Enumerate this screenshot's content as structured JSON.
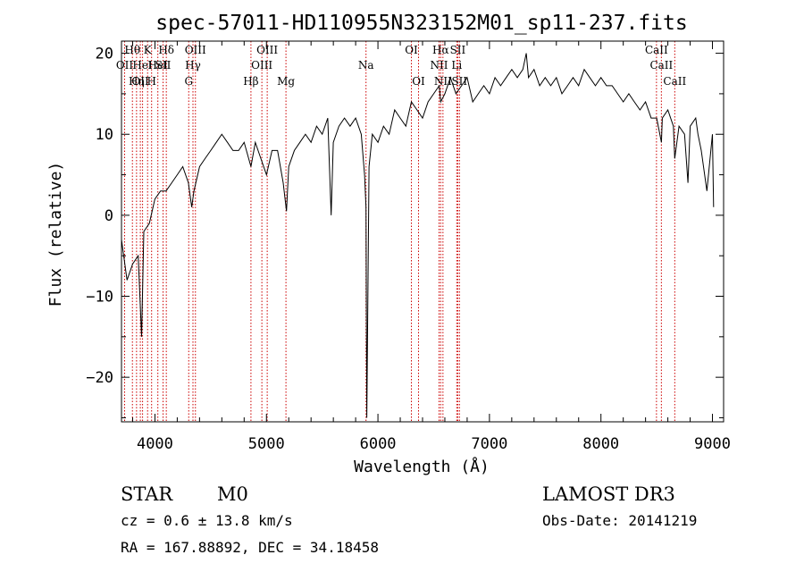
{
  "chart_data": {
    "type": "line",
    "title": "spec-57011-HD110955N323152M01_sp11-237.fits",
    "xlabel": "Wavelength (Å)",
    "ylabel": "Flux (relative)",
    "xlim": [
      3700,
      9100
    ],
    "ylim": [
      -25.5,
      21.5
    ],
    "xticks": [
      4000,
      5000,
      6000,
      7000,
      8000,
      9000
    ],
    "xtick_labels": [
      "4000",
      "5000",
      "6000",
      "7000",
      "8000",
      "9000"
    ],
    "yticks": [
      -20,
      -10,
      0,
      10,
      20
    ],
    "ytick_labels": [
      "−20",
      "−10",
      "0",
      "10",
      "20"
    ],
    "grid": false,
    "series": [
      {
        "x": [
          3700,
          3750,
          3800,
          3850,
          3880,
          3900,
          3950,
          4000,
          4050,
          4100,
          4150,
          4200,
          4250,
          4300,
          4330,
          4350,
          4400,
          4450,
          4500,
          4550,
          4600,
          4650,
          4700,
          4750,
          4800,
          4861,
          4900,
          4950,
          5000,
          5050,
          5100,
          5150,
          5180,
          5200,
          5250,
          5300,
          5350,
          5400,
          5450,
          5500,
          5550,
          5580,
          5600,
          5650,
          5700,
          5750,
          5800,
          5850,
          5880,
          5893,
          5900,
          5920,
          5950,
          6000,
          6050,
          6100,
          6150,
          6200,
          6250,
          6300,
          6350,
          6400,
          6450,
          6500,
          6550,
          6563,
          6600,
          6650,
          6700,
          6750,
          6800,
          6850,
          6900,
          6950,
          7000,
          7050,
          7100,
          7150,
          7200,
          7250,
          7300,
          7330,
          7350,
          7400,
          7450,
          7500,
          7550,
          7600,
          7650,
          7700,
          7750,
          7800,
          7850,
          7900,
          7950,
          8000,
          8050,
          8100,
          8150,
          8200,
          8250,
          8300,
          8350,
          8400,
          8450,
          8500,
          8542,
          8550,
          8600,
          8650,
          8662,
          8700,
          8750,
          8780,
          8800,
          8850,
          8870,
          8900,
          8950,
          9000,
          9010
        ],
        "y": [
          -3,
          -8,
          -6,
          -5,
          -15,
          -2,
          -1,
          2,
          3,
          3,
          4,
          5,
          6,
          4,
          1,
          3,
          6,
          7,
          8,
          9,
          10,
          9,
          8,
          8,
          9,
          6,
          9,
          7,
          5,
          8,
          8,
          4,
          0.5,
          6,
          8,
          9,
          10,
          9,
          11,
          10,
          12,
          0,
          9,
          11,
          12,
          11,
          12,
          10,
          5,
          1,
          -25,
          6,
          10,
          9,
          11,
          10,
          13,
          12,
          11,
          14,
          13,
          12,
          14,
          15,
          16,
          14,
          15,
          17,
          15,
          16,
          17,
          14,
          15,
          16,
          15,
          17,
          16,
          17,
          18,
          17,
          18,
          20,
          17,
          18,
          16,
          17,
          16,
          17,
          15,
          16,
          17,
          16,
          18,
          17,
          16,
          17,
          16,
          16,
          15,
          14,
          15,
          14,
          13,
          14,
          12,
          12,
          9,
          12,
          13,
          11,
          7,
          11,
          10,
          4,
          11,
          12,
          10,
          8,
          3,
          10,
          1
        ]
      }
    ],
    "lines": [
      {
        "x": 3728,
        "label": "OII",
        "row": 1
      },
      {
        "x": 3798,
        "label": "Hθ",
        "row": 0
      },
      {
        "x": 3835,
        "label": "Hη",
        "row": 2
      },
      {
        "x": 3869,
        "label": "OII",
        "row": 2
      },
      {
        "x": 3889,
        "label": "HeI",
        "row": 1
      },
      {
        "x": 3934,
        "label": "K",
        "row": 0
      },
      {
        "x": 3970,
        "label": "H",
        "row": 2
      },
      {
        "x": 4026,
        "label": "HeI",
        "row": 1
      },
      {
        "x": 4073,
        "label": "SII",
        "row": 1
      },
      {
        "x": 4102,
        "label": "Hδ",
        "row": 0
      },
      {
        "x": 4303,
        "label": "G",
        "row": 2
      },
      {
        "x": 4341,
        "label": "Hγ",
        "row": 1
      },
      {
        "x": 4363,
        "label": "OIII",
        "row": 0
      },
      {
        "x": 4861,
        "label": "Hβ",
        "row": 2
      },
      {
        "x": 4959,
        "label": "OIII",
        "row": 1
      },
      {
        "x": 5007,
        "label": "OIII",
        "row": 0
      },
      {
        "x": 5175,
        "label": "Mg",
        "row": 2
      },
      {
        "x": 5893,
        "label": "Na",
        "row": 1
      },
      {
        "x": 6300,
        "label": "OI",
        "row": 0
      },
      {
        "x": 6364,
        "label": "OI",
        "row": 2
      },
      {
        "x": 6548,
        "label": "NII",
        "row": 1
      },
      {
        "x": 6563,
        "label": "Hα",
        "row": 0
      },
      {
        "x": 6583,
        "label": "NII",
        "row": 2
      },
      {
        "x": 6707,
        "label": "Li",
        "row": 1
      },
      {
        "x": 6716,
        "label": "SII",
        "row": 0
      },
      {
        "x": 6731,
        "label": "SII",
        "row": 2
      },
      {
        "x": 8498,
        "label": "CaII",
        "row": 0
      },
      {
        "x": 8542,
        "label": "CaII",
        "row": 1
      },
      {
        "x": 8662,
        "label": "CaII",
        "row": 2
      }
    ]
  },
  "info": {
    "class_label": "STAR",
    "subclass": "M0",
    "survey": "LAMOST DR3",
    "redshift": "cz = 0.6 ± 13.8 km/s",
    "obs_date": "Obs-Date: 20141219",
    "coords": "RA = 167.88892, DEC =  34.18458"
  },
  "colors": {
    "spectrum": "#000000",
    "line_markers": "#cc0000",
    "axes": "#000000",
    "background": "#ffffff"
  }
}
